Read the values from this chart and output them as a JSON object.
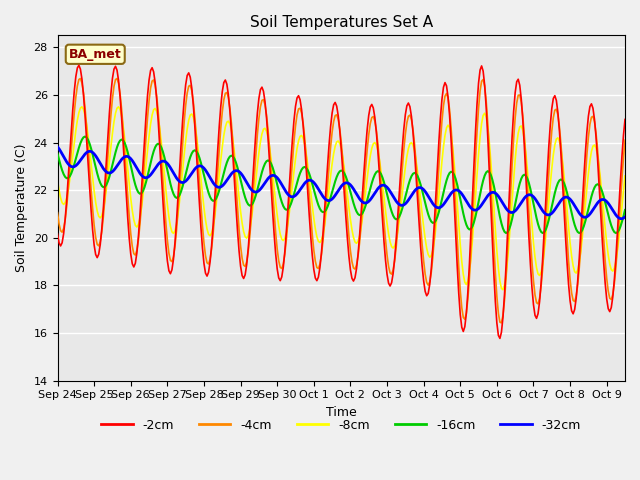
{
  "title": "Soil Temperatures Set A",
  "xlabel": "Time",
  "ylabel": "Soil Temperature (C)",
  "ylim": [
    14,
    28.5
  ],
  "yticks": [
    14,
    16,
    18,
    20,
    22,
    24,
    26,
    28
  ],
  "annotation": "BA_met",
  "line_colors": {
    "-2cm": "#ff0000",
    "-4cm": "#ff8800",
    "-8cm": "#ffff00",
    "-16cm": "#00cc00",
    "-32cm": "#0000ff"
  },
  "line_widths": {
    "-2cm": 1.2,
    "-4cm": 1.2,
    "-8cm": 1.2,
    "-16cm": 1.5,
    "-32cm": 2.0
  },
  "xtick_labels": [
    "Sep 24",
    "Sep 25",
    "Sep 26",
    "Sep 27",
    "Sep 28",
    "Sep 29",
    "Sep 30",
    "Oct 1",
    "Oct 2",
    "Oct 3",
    "Oct 4",
    "Oct 5",
    "Oct 6",
    "Oct 7",
    "Oct 8",
    "Oct 9"
  ],
  "n_days": 15.5,
  "base_temp": [
    23.5,
    23.2,
    23.0,
    22.8,
    22.6,
    22.4,
    22.2,
    22.0,
    21.9,
    21.8,
    21.7,
    21.6,
    21.5,
    21.4,
    21.3,
    21.2
  ],
  "amp_2cm": [
    3.8,
    4.0,
    4.2,
    4.3,
    4.2,
    4.1,
    4.0,
    3.8,
    3.7,
    3.8,
    4.0,
    5.5,
    5.8,
    4.8,
    4.5,
    4.3
  ],
  "amp_4cm": [
    3.2,
    3.5,
    3.7,
    3.8,
    3.7,
    3.6,
    3.5,
    3.3,
    3.2,
    3.3,
    3.5,
    5.0,
    5.2,
    4.2,
    4.0,
    3.8
  ],
  "amp_8cm": [
    2.0,
    2.3,
    2.5,
    2.6,
    2.5,
    2.4,
    2.3,
    2.2,
    2.1,
    2.2,
    2.3,
    3.5,
    3.8,
    3.0,
    2.8,
    2.6
  ],
  "amp_16cm": [
    0.9,
    1.0,
    1.1,
    1.1,
    1.0,
    1.0,
    1.0,
    0.9,
    0.9,
    1.0,
    1.0,
    1.2,
    1.3,
    1.2,
    1.1,
    1.0
  ],
  "amp_32cm": [
    0.4,
    0.4,
    0.4,
    0.4,
    0.4,
    0.4,
    0.4,
    0.4,
    0.4,
    0.4,
    0.4,
    0.4,
    0.4,
    0.4,
    0.4,
    0.4
  ],
  "phase_2cm": 0.0,
  "phase_4cm": 0.2,
  "phase_8cm": 0.5,
  "phase_16cm": 1.1,
  "phase_32cm": 2.0
}
